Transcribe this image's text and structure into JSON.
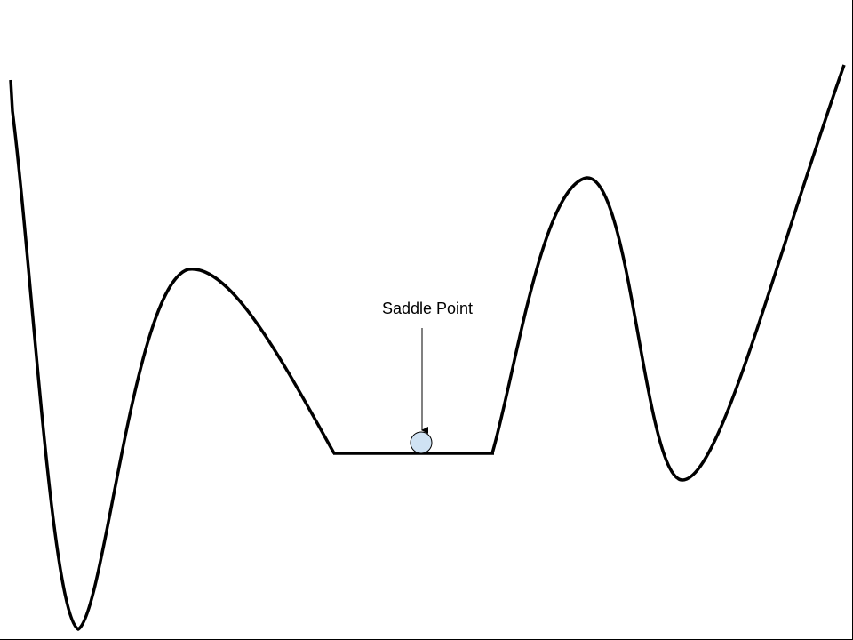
{
  "annotation": {
    "label": "Saddle Point"
  },
  "colors": {
    "curve": "#000000",
    "ball_fill": "#cfe2f3",
    "ball_stroke": "#000000",
    "background": "#ffffff"
  },
  "icons": {
    "ball": "ball-icon",
    "arrow": "arrow-down-icon"
  }
}
